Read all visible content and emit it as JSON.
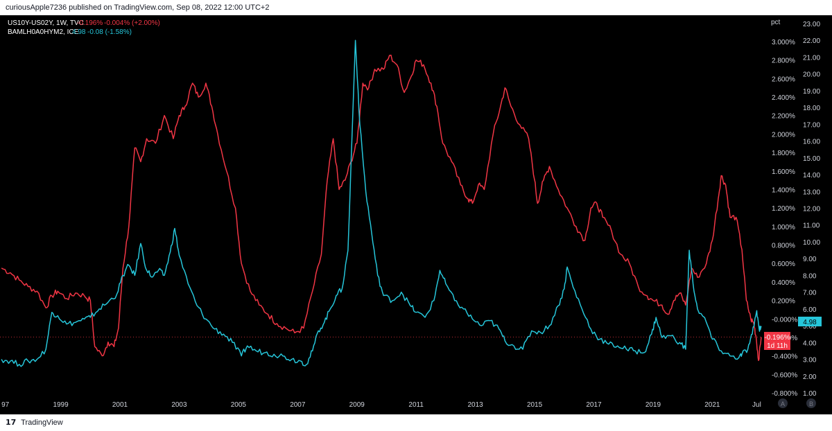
{
  "header": {
    "publisher": "curiousApple7236 published on TradingView.com, Sep 08, 2022 12:00 UTC+2"
  },
  "footer": {
    "logo_glyph": "17",
    "brand": "TradingView"
  },
  "legend": [
    {
      "symbol": "US10Y-US02Y, 1W, TVC",
      "value": "-0.196%",
      "change": "-0.004% (+2.00%)",
      "color": "#f23645"
    },
    {
      "symbol": "BAMLH0A0HYM2, ICE",
      "value": "4.98",
      "change": "-0.08 (-1.58%)",
      "color": "#26c6da"
    }
  ],
  "badges": {
    "cyan": "4.98",
    "red_value": "-0.196%",
    "red_countdown": "1d 11h",
    "scale_a": "A",
    "scale_b": "B"
  },
  "chart_data": {
    "type": "line",
    "x_ticks": [
      "97",
      "1999",
      "2001",
      "2003",
      "2005",
      "2007",
      "2009",
      "2011",
      "2013",
      "2015",
      "2017",
      "2019",
      "2021",
      "Jul"
    ],
    "x_tick_years": [
      1997,
      1999,
      2001,
      2003,
      2005,
      2007,
      2009,
      2011,
      2013,
      2015,
      2017,
      2019,
      2021,
      2022.5
    ],
    "xlim": [
      1996.95,
      2022.7
    ],
    "y_left_unit": "pct",
    "y_left_ticks": [
      "3.000%",
      "2.800%",
      "2.600%",
      "2.400%",
      "2.200%",
      "2.000%",
      "1.800%",
      "1.600%",
      "1.400%",
      "1.200%",
      "1.000%",
      "0.800%",
      "0.600%",
      "0.400%",
      "0.200%",
      "-0.000%",
      "-0.200%",
      "-0.400%",
      "-0.600%",
      "-0.800%"
    ],
    "y_left_values": [
      3.0,
      2.8,
      2.6,
      2.4,
      2.2,
      2.0,
      1.8,
      1.6,
      1.4,
      1.2,
      1.0,
      0.8,
      0.6,
      0.4,
      0.2,
      0.0,
      -0.2,
      -0.4,
      -0.6,
      -0.8
    ],
    "y_left_lim": [
      -0.8,
      3.0
    ],
    "y_right_ticks": [
      "23.00",
      "22.00",
      "21.00",
      "20.00",
      "19.00",
      "18.00",
      "17.00",
      "16.00",
      "15.00",
      "14.00",
      "13.00",
      "12.00",
      "11.00",
      "10.00",
      "9.00",
      "8.00",
      "7.00",
      "6.00",
      "5.00",
      "4.00",
      "3.00",
      "2.00",
      "1.00"
    ],
    "y_right_values": [
      23,
      22,
      21,
      20,
      19,
      18,
      17,
      16,
      15,
      14,
      13,
      12,
      11,
      10,
      9,
      8,
      7,
      6,
      5,
      4,
      3,
      2,
      1
    ],
    "y_right_lim": [
      1,
      23
    ],
    "last_price_line": -0.196,
    "grid": false,
    "series": [
      {
        "name": "US10Y-US02Y",
        "axis": "left",
        "color": "#f23645",
        "points": [
          [
            1997.0,
            0.55
          ],
          [
            1997.3,
            0.5
          ],
          [
            1997.6,
            0.42
          ],
          [
            1997.9,
            0.35
          ],
          [
            1998.2,
            0.3
          ],
          [
            1998.5,
            0.12
          ],
          [
            1998.7,
            0.25
          ],
          [
            1998.9,
            0.3
          ],
          [
            1999.2,
            0.22
          ],
          [
            1999.5,
            0.28
          ],
          [
            1999.8,
            0.25
          ],
          [
            2000.0,
            0.2
          ],
          [
            2000.15,
            -0.3
          ],
          [
            2000.4,
            -0.4
          ],
          [
            2000.6,
            -0.25
          ],
          [
            2000.8,
            -0.3
          ],
          [
            2000.95,
            -0.1
          ],
          [
            2001.1,
            0.55
          ],
          [
            2001.3,
            1.0
          ],
          [
            2001.5,
            1.85
          ],
          [
            2001.7,
            1.7
          ],
          [
            2001.9,
            1.95
          ],
          [
            2002.2,
            1.9
          ],
          [
            2002.5,
            2.2
          ],
          [
            2002.8,
            1.95
          ],
          [
            2003.0,
            2.2
          ],
          [
            2003.2,
            2.3
          ],
          [
            2003.45,
            2.55
          ],
          [
            2003.65,
            2.4
          ],
          [
            2003.9,
            2.55
          ],
          [
            2004.1,
            2.3
          ],
          [
            2004.3,
            2.0
          ],
          [
            2004.6,
            1.6
          ],
          [
            2004.9,
            1.2
          ],
          [
            2005.1,
            0.6
          ],
          [
            2005.4,
            0.3
          ],
          [
            2005.7,
            0.15
          ],
          [
            2006.0,
            0.05
          ],
          [
            2006.3,
            -0.05
          ],
          [
            2006.6,
            -0.1
          ],
          [
            2006.9,
            -0.15
          ],
          [
            2007.2,
            -0.1
          ],
          [
            2007.5,
            0.3
          ],
          [
            2007.8,
            0.7
          ],
          [
            2008.0,
            1.5
          ],
          [
            2008.2,
            1.95
          ],
          [
            2008.4,
            1.4
          ],
          [
            2008.6,
            1.5
          ],
          [
            2008.8,
            1.7
          ],
          [
            2009.0,
            1.9
          ],
          [
            2009.2,
            2.55
          ],
          [
            2009.4,
            2.5
          ],
          [
            2009.6,
            2.7
          ],
          [
            2009.9,
            2.7
          ],
          [
            2010.1,
            2.85
          ],
          [
            2010.35,
            2.75
          ],
          [
            2010.6,
            2.45
          ],
          [
            2010.8,
            2.6
          ],
          [
            2011.0,
            2.8
          ],
          [
            2011.25,
            2.75
          ],
          [
            2011.5,
            2.55
          ],
          [
            2011.7,
            2.3
          ],
          [
            2011.9,
            1.9
          ],
          [
            2012.2,
            1.7
          ],
          [
            2012.5,
            1.45
          ],
          [
            2012.75,
            1.3
          ],
          [
            2012.9,
            1.25
          ],
          [
            2013.1,
            1.45
          ],
          [
            2013.3,
            1.4
          ],
          [
            2013.6,
            2.0
          ],
          [
            2013.85,
            2.3
          ],
          [
            2014.0,
            2.5
          ],
          [
            2014.2,
            2.3
          ],
          [
            2014.5,
            2.1
          ],
          [
            2014.8,
            1.95
          ],
          [
            2015.0,
            1.5
          ],
          [
            2015.1,
            1.25
          ],
          [
            2015.3,
            1.5
          ],
          [
            2015.5,
            1.65
          ],
          [
            2015.8,
            1.4
          ],
          [
            2016.1,
            1.2
          ],
          [
            2016.4,
            1.0
          ],
          [
            2016.7,
            0.85
          ],
          [
            2016.9,
            1.2
          ],
          [
            2017.1,
            1.25
          ],
          [
            2017.3,
            1.1
          ],
          [
            2017.6,
            0.95
          ],
          [
            2017.9,
            0.7
          ],
          [
            2018.2,
            0.6
          ],
          [
            2018.5,
            0.35
          ],
          [
            2018.8,
            0.25
          ],
          [
            2019.0,
            0.2
          ],
          [
            2019.3,
            0.15
          ],
          [
            2019.5,
            0.05
          ],
          [
            2019.7,
            0.2
          ],
          [
            2019.9,
            0.28
          ],
          [
            2020.1,
            0.15
          ],
          [
            2020.3,
            0.55
          ],
          [
            2020.5,
            0.45
          ],
          [
            2020.8,
            0.6
          ],
          [
            2021.0,
            0.85
          ],
          [
            2021.2,
            1.3
          ],
          [
            2021.3,
            1.55
          ],
          [
            2021.45,
            1.45
          ],
          [
            2021.6,
            1.1
          ],
          [
            2021.8,
            1.1
          ],
          [
            2022.0,
            0.75
          ],
          [
            2022.15,
            0.2
          ],
          [
            2022.3,
            0.0
          ],
          [
            2022.4,
            -0.05
          ],
          [
            2022.48,
            -0.2
          ],
          [
            2022.56,
            -0.45
          ],
          [
            2022.65,
            -0.196
          ]
        ]
      },
      {
        "name": "BAMLH0A0HYM2",
        "axis": "right",
        "color": "#26c6da",
        "points": [
          [
            1997.0,
            3.0
          ],
          [
            1997.3,
            2.9
          ],
          [
            1997.6,
            2.7
          ],
          [
            1997.9,
            2.9
          ],
          [
            1998.2,
            3.0
          ],
          [
            1998.5,
            3.6
          ],
          [
            1998.7,
            5.8
          ],
          [
            1998.9,
            5.6
          ],
          [
            1999.2,
            5.1
          ],
          [
            1999.5,
            5.2
          ],
          [
            1999.8,
            5.4
          ],
          [
            2000.0,
            5.5
          ],
          [
            2000.3,
            6.0
          ],
          [
            2000.6,
            6.4
          ],
          [
            2000.9,
            6.9
          ],
          [
            2001.1,
            8.0
          ],
          [
            2001.3,
            8.6
          ],
          [
            2001.5,
            8.0
          ],
          [
            2001.7,
            9.9
          ],
          [
            2001.9,
            8.3
          ],
          [
            2002.1,
            7.9
          ],
          [
            2002.3,
            8.3
          ],
          [
            2002.5,
            8.0
          ],
          [
            2002.7,
            9.4
          ],
          [
            2002.85,
            10.8
          ],
          [
            2003.0,
            9.2
          ],
          [
            2003.3,
            7.5
          ],
          [
            2003.6,
            6.2
          ],
          [
            2003.9,
            5.4
          ],
          [
            2004.2,
            4.8
          ],
          [
            2004.5,
            4.5
          ],
          [
            2004.8,
            4.0
          ],
          [
            2005.1,
            3.2
          ],
          [
            2005.3,
            3.8
          ],
          [
            2005.6,
            3.5
          ],
          [
            2005.9,
            3.4
          ],
          [
            2006.2,
            3.3
          ],
          [
            2006.5,
            3.2
          ],
          [
            2006.8,
            3.0
          ],
          [
            2007.1,
            2.9
          ],
          [
            2007.3,
            2.7
          ],
          [
            2007.5,
            3.5
          ],
          [
            2007.7,
            4.7
          ],
          [
            2007.9,
            5.2
          ],
          [
            2008.1,
            6.0
          ],
          [
            2008.3,
            6.8
          ],
          [
            2008.5,
            7.2
          ],
          [
            2008.7,
            9.5
          ],
          [
            2008.95,
            22.0
          ],
          [
            2009.1,
            17.0
          ],
          [
            2009.3,
            13.0
          ],
          [
            2009.5,
            10.5
          ],
          [
            2009.7,
            8.0
          ],
          [
            2009.9,
            6.8
          ],
          [
            2010.2,
            6.5
          ],
          [
            2010.5,
            7.0
          ],
          [
            2010.8,
            6.2
          ],
          [
            2011.0,
            5.8
          ],
          [
            2011.3,
            5.5
          ],
          [
            2011.6,
            6.5
          ],
          [
            2011.8,
            8.3
          ],
          [
            2012.0,
            7.5
          ],
          [
            2012.3,
            6.5
          ],
          [
            2012.6,
            6.0
          ],
          [
            2012.9,
            5.4
          ],
          [
            2013.2,
            5.0
          ],
          [
            2013.5,
            5.3
          ],
          [
            2013.8,
            4.8
          ],
          [
            2014.0,
            4.1
          ],
          [
            2014.3,
            3.8
          ],
          [
            2014.6,
            3.6
          ],
          [
            2014.9,
            4.7
          ],
          [
            2015.2,
            4.6
          ],
          [
            2015.5,
            5.0
          ],
          [
            2015.8,
            6.2
          ],
          [
            2016.0,
            7.2
          ],
          [
            2016.1,
            8.5
          ],
          [
            2016.3,
            7.3
          ],
          [
            2016.6,
            6.0
          ],
          [
            2016.9,
            4.8
          ],
          [
            2017.2,
            4.2
          ],
          [
            2017.5,
            3.9
          ],
          [
            2017.8,
            3.8
          ],
          [
            2018.1,
            3.6
          ],
          [
            2018.4,
            3.5
          ],
          [
            2018.7,
            3.4
          ],
          [
            2018.95,
            4.5
          ],
          [
            2019.1,
            5.5
          ],
          [
            2019.3,
            4.3
          ],
          [
            2019.6,
            4.4
          ],
          [
            2019.9,
            4.0
          ],
          [
            2020.1,
            3.6
          ],
          [
            2020.22,
            9.5
          ],
          [
            2020.35,
            7.5
          ],
          [
            2020.5,
            6.0
          ],
          [
            2020.8,
            5.2
          ],
          [
            2021.0,
            4.2
          ],
          [
            2021.3,
            3.5
          ],
          [
            2021.6,
            3.2
          ],
          [
            2021.9,
            3.1
          ],
          [
            2022.0,
            3.3
          ],
          [
            2022.2,
            3.6
          ],
          [
            2022.35,
            4.5
          ],
          [
            2022.5,
            5.9
          ],
          [
            2022.58,
            4.8
          ],
          [
            2022.65,
            4.98
          ]
        ]
      }
    ]
  }
}
